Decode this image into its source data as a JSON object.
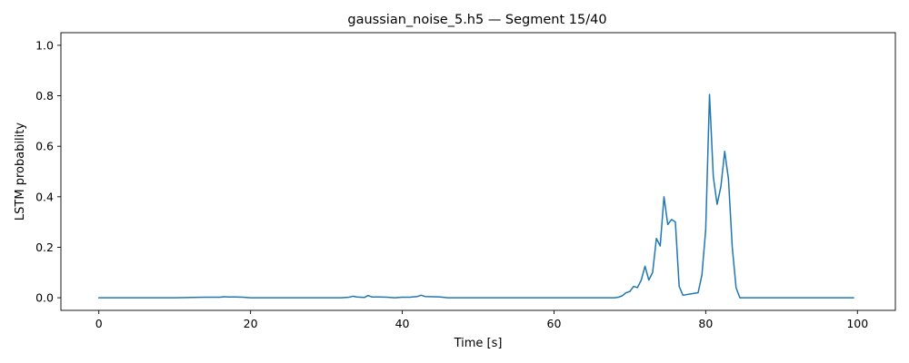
{
  "chart_data": {
    "type": "line",
    "title": "gaussian_noise_5.h5 — Segment 15/40",
    "xlabel": "Time [s]",
    "ylabel": "LSTM probability",
    "xlim": [
      -5,
      105
    ],
    "ylim": [
      -0.05,
      1.05
    ],
    "x_ticks": [
      0,
      20,
      40,
      60,
      80,
      100
    ],
    "y_ticks": [
      0.0,
      0.2,
      0.4,
      0.6,
      0.8,
      1.0
    ],
    "x_tick_labels": [
      "0",
      "20",
      "40",
      "60",
      "80",
      "100"
    ],
    "y_tick_labels": [
      "0.0",
      "0.2",
      "0.4",
      "0.6",
      "0.8",
      "1.0"
    ],
    "grid": false,
    "series": [
      {
        "color": "#1f77b4",
        "x": [
          0,
          10,
          14,
          16,
          16.5,
          17,
          18,
          19,
          20,
          30,
          32,
          33,
          33.5,
          34,
          35,
          35.5,
          36,
          37,
          38,
          39,
          40,
          41,
          42,
          42.5,
          43,
          44,
          45,
          46,
          60,
          67,
          68,
          68.5,
          69,
          69.5,
          70,
          70.5,
          71,
          71.5,
          72,
          72.5,
          73,
          73.5,
          74,
          74.5,
          75,
          75.5,
          76,
          76.5,
          77,
          78,
          79,
          79.5,
          80,
          80.5,
          81,
          81.5,
          82,
          82.5,
          83,
          83.5,
          84,
          84.5,
          85,
          90,
          99.5
        ],
        "y": [
          0.0,
          0.0,
          0.002,
          0.002,
          0.004,
          0.003,
          0.003,
          0.002,
          0.0,
          0.0,
          0.0,
          0.002,
          0.006,
          0.003,
          0.001,
          0.009,
          0.003,
          0.003,
          0.002,
          0.0,
          0.002,
          0.002,
          0.005,
          0.01,
          0.005,
          0.004,
          0.003,
          0.0,
          0.0,
          0.0,
          0.0,
          0.002,
          0.008,
          0.02,
          0.025,
          0.045,
          0.04,
          0.07,
          0.125,
          0.07,
          0.1,
          0.235,
          0.205,
          0.4,
          0.29,
          0.31,
          0.3,
          0.045,
          0.01,
          0.015,
          0.02,
          0.09,
          0.27,
          0.805,
          0.48,
          0.37,
          0.44,
          0.58,
          0.47,
          0.2,
          0.04,
          0.0,
          0.0,
          0.0,
          0.0
        ]
      }
    ]
  }
}
